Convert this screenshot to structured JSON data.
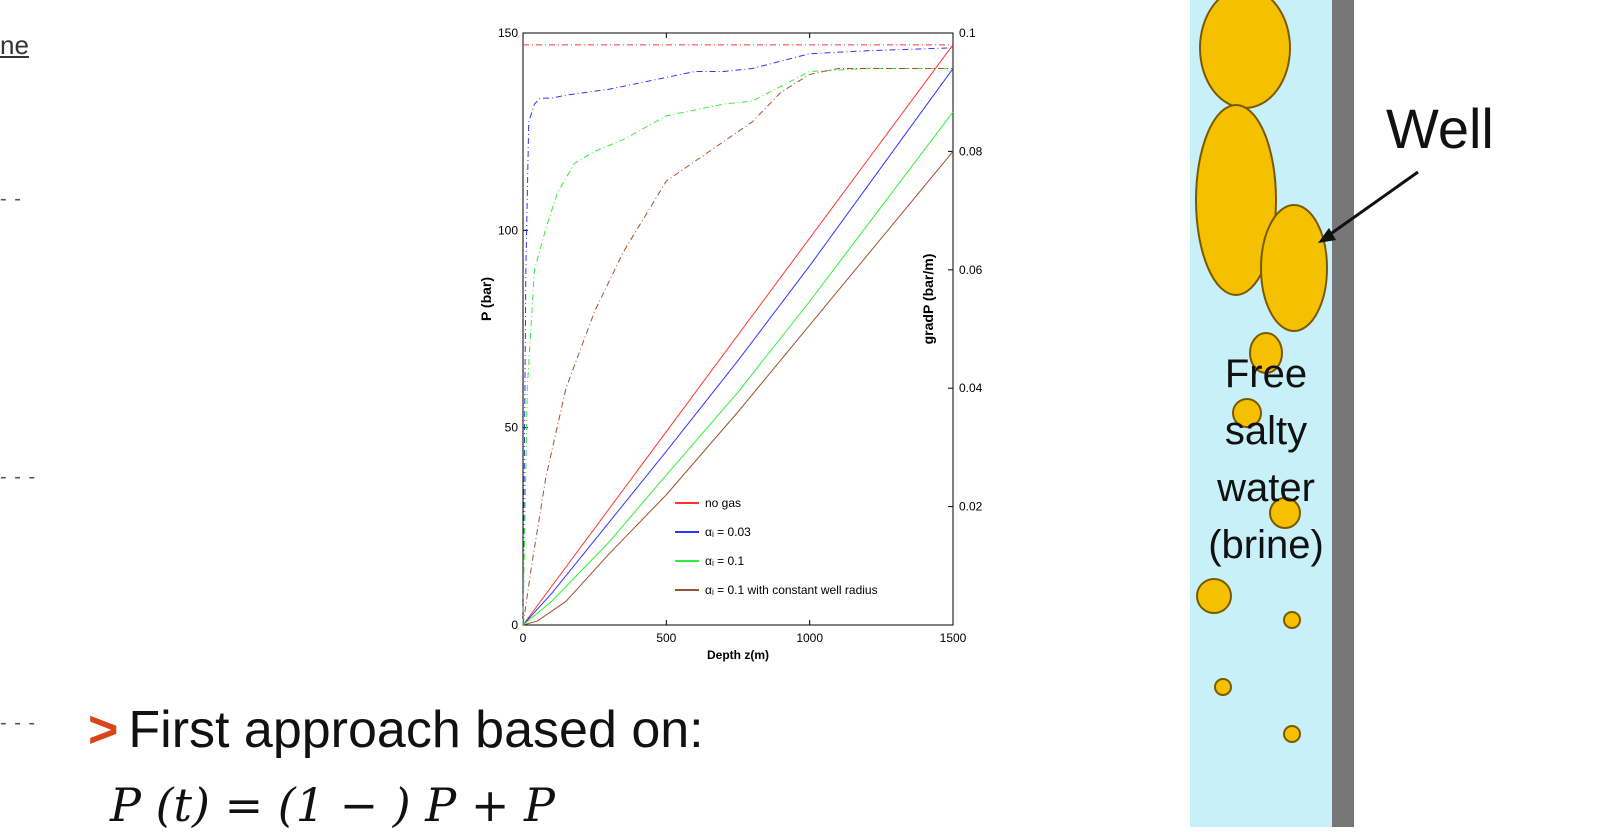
{
  "left_fragments": {
    "top_text": "ne",
    "dash1": "- -",
    "dash2": "- - -",
    "dash3": "- - -"
  },
  "bullet": {
    "arrow": ">",
    "text": "First approach based on:",
    "formula": "P   (t)  = (1 −   ) P   + P"
  },
  "well_diagram": {
    "label": "Well",
    "water_label_lines": [
      "Free",
      "salty",
      "water",
      "(brine)"
    ],
    "colors": {
      "wall": "#777777",
      "water": "#c8f0f8",
      "bubble": "#f5c000",
      "bubble_stroke": "#7a5a00"
    }
  },
  "chart_data": {
    "type": "line",
    "xlabel": "Depth z(m)",
    "ylabel": "P (bar)",
    "y2label": "gradP (bar/m)",
    "xlim": [
      0,
      1500
    ],
    "ylim": [
      0,
      150
    ],
    "y2lim": [
      0,
      0.1
    ],
    "xticks": [
      0,
      500,
      1000,
      1500
    ],
    "yticks": [
      0,
      50,
      100,
      150
    ],
    "y2ticks": [
      0.02,
      0.04,
      0.06,
      0.08,
      0.1
    ],
    "legend_position": "bottom-right",
    "series": [
      {
        "name": "no gas",
        "color": "#ff3333",
        "pressure": {
          "x": [
            0,
            1500
          ],
          "y": [
            0,
            147
          ]
        },
        "gradient": {
          "x": [
            0,
            1500
          ],
          "y": [
            0.098,
            0.098
          ]
        }
      },
      {
        "name": "αᵢ = 0.03",
        "color": "#3333ff",
        "pressure": {
          "x": [
            0,
            100,
            300,
            500,
            750,
            1000,
            1250,
            1500
          ],
          "y": [
            0,
            8,
            26,
            44,
            67,
            91,
            116,
            141
          ]
        },
        "gradient": {
          "x": [
            0,
            10,
            20,
            40,
            60,
            100,
            150,
            300,
            500,
            600,
            700,
            800,
            1000,
            1200,
            1500
          ],
          "y": [
            0,
            0.06,
            0.085,
            0.088,
            0.089,
            0.089,
            0.0895,
            0.0905,
            0.0925,
            0.0935,
            0.0935,
            0.094,
            0.0965,
            0.097,
            0.0975
          ]
        }
      },
      {
        "name": "αᵢ = 0.1",
        "color": "#33ee33",
        "pressure": {
          "x": [
            0,
            100,
            300,
            500,
            750,
            1000,
            1250,
            1500
          ],
          "y": [
            0,
            6,
            21,
            38,
            59,
            82,
            106,
            130
          ]
        },
        "gradient": {
          "x": [
            0,
            15,
            40,
            80,
            120,
            180,
            250,
            350,
            500,
            700,
            800,
            1000,
            1200,
            1500
          ],
          "y": [
            0,
            0.04,
            0.06,
            0.067,
            0.073,
            0.078,
            0.08,
            0.082,
            0.086,
            0.088,
            0.0885,
            0.0935,
            0.094,
            0.094
          ]
        }
      },
      {
        "name": "αᵢ = 0.1 with constant well radius",
        "color": "#a0522d",
        "pressure": {
          "x": [
            0,
            50,
            150,
            300,
            500,
            750,
            1000,
            1250,
            1500
          ],
          "y": [
            0,
            1,
            6,
            18,
            33,
            54,
            76,
            98,
            120
          ]
        },
        "gradient": {
          "x": [
            0,
            30,
            80,
            150,
            250,
            350,
            500,
            650,
            800,
            900,
            1000,
            1100,
            1300,
            1500
          ],
          "y": [
            0,
            0.01,
            0.025,
            0.04,
            0.053,
            0.063,
            0.075,
            0.08,
            0.085,
            0.09,
            0.093,
            0.094,
            0.094,
            0.094
          ]
        }
      }
    ]
  }
}
